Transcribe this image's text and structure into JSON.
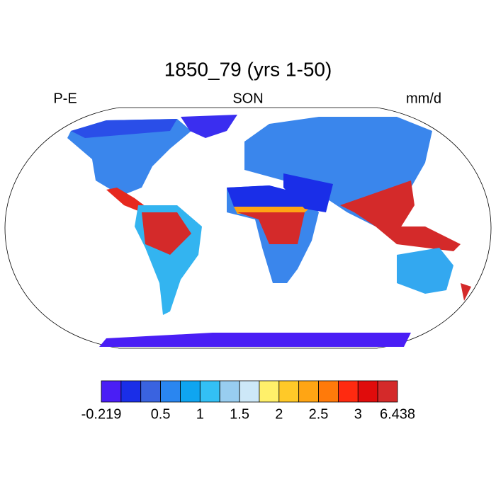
{
  "header": {
    "title": "1850_79 (yrs 1-50)",
    "left": "P-E",
    "center": "SON",
    "right": "mm/d"
  },
  "colorbar": {
    "colors": [
      "#4a1ef5",
      "#1a2ee8",
      "#3a63e0",
      "#2a86f0",
      "#0fa5f0",
      "#33c0f5",
      "#98cdf0",
      "#cde8f8",
      "#fff06a",
      "#ffc928",
      "#ffa514",
      "#ff7a0a",
      "#ff2a10",
      "#e00c0c",
      "#d42a2a"
    ],
    "ticks": [
      -0.219,
      0.5,
      1,
      1.5,
      2,
      2.5,
      3,
      6.438
    ]
  }
}
